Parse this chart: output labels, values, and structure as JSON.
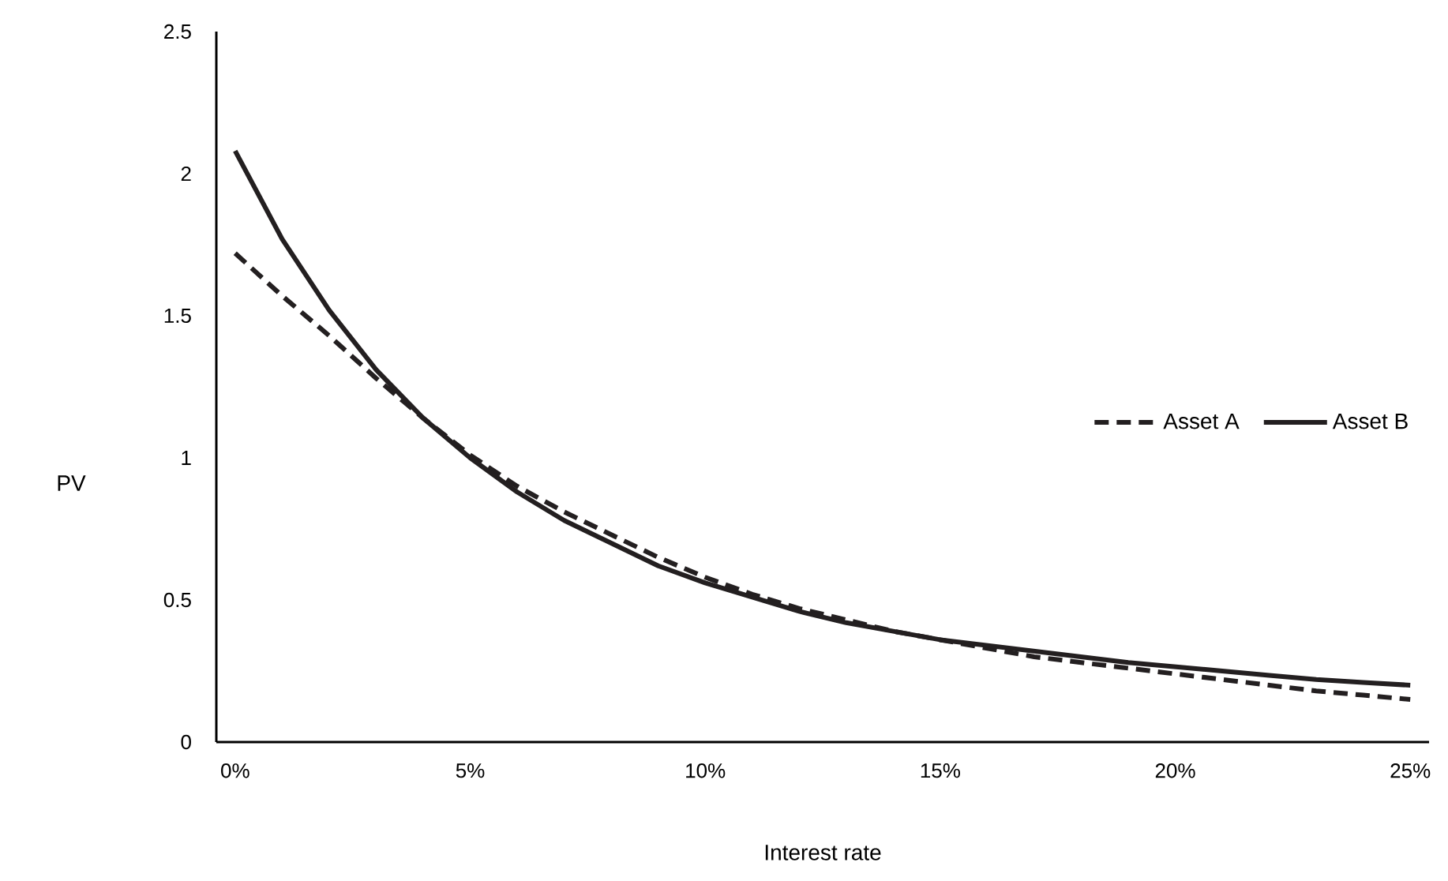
{
  "chart_data": {
    "type": "line",
    "xlabel": "Interest rate",
    "ylabel": "PV",
    "x": [
      0,
      1,
      2,
      3,
      4,
      5,
      6,
      7,
      8,
      9,
      10,
      11,
      12,
      13,
      14,
      15,
      16,
      17,
      18,
      19,
      20,
      21,
      22,
      23,
      24,
      25
    ],
    "xlim": [
      -0.4,
      25.4
    ],
    "xticks": [
      {
        "value": 0,
        "label": "0%"
      },
      {
        "value": 5,
        "label": "5%"
      },
      {
        "value": 10,
        "label": "10%"
      },
      {
        "value": 15,
        "label": "15%"
      },
      {
        "value": 20,
        "label": "20%"
      },
      {
        "value": 25,
        "label": "25%"
      }
    ],
    "ylim": [
      0,
      2.5
    ],
    "yticks": [
      0,
      0.5,
      1,
      1.5,
      2,
      2.5
    ],
    "legend": "right",
    "grid": false,
    "series": [
      {
        "name": "Asset A",
        "color": "#231f20",
        "line_style": "dashed",
        "values": [
          1.72,
          1.57,
          1.43,
          1.28,
          1.14,
          1.01,
          0.9,
          0.81,
          0.73,
          0.65,
          0.58,
          0.52,
          0.47,
          0.43,
          0.39,
          0.36,
          0.33,
          0.3,
          0.28,
          0.26,
          0.24,
          0.22,
          0.2,
          0.18,
          0.165,
          0.15
        ]
      },
      {
        "name": "Asset B",
        "color": "#231f20",
        "line_style": "solid",
        "values": [
          2.08,
          1.77,
          1.52,
          1.31,
          1.14,
          1.0,
          0.88,
          0.78,
          0.7,
          0.62,
          0.56,
          0.51,
          0.46,
          0.42,
          0.39,
          0.36,
          0.34,
          0.32,
          0.3,
          0.28,
          0.265,
          0.25,
          0.235,
          0.22,
          0.21,
          0.2
        ]
      }
    ]
  }
}
